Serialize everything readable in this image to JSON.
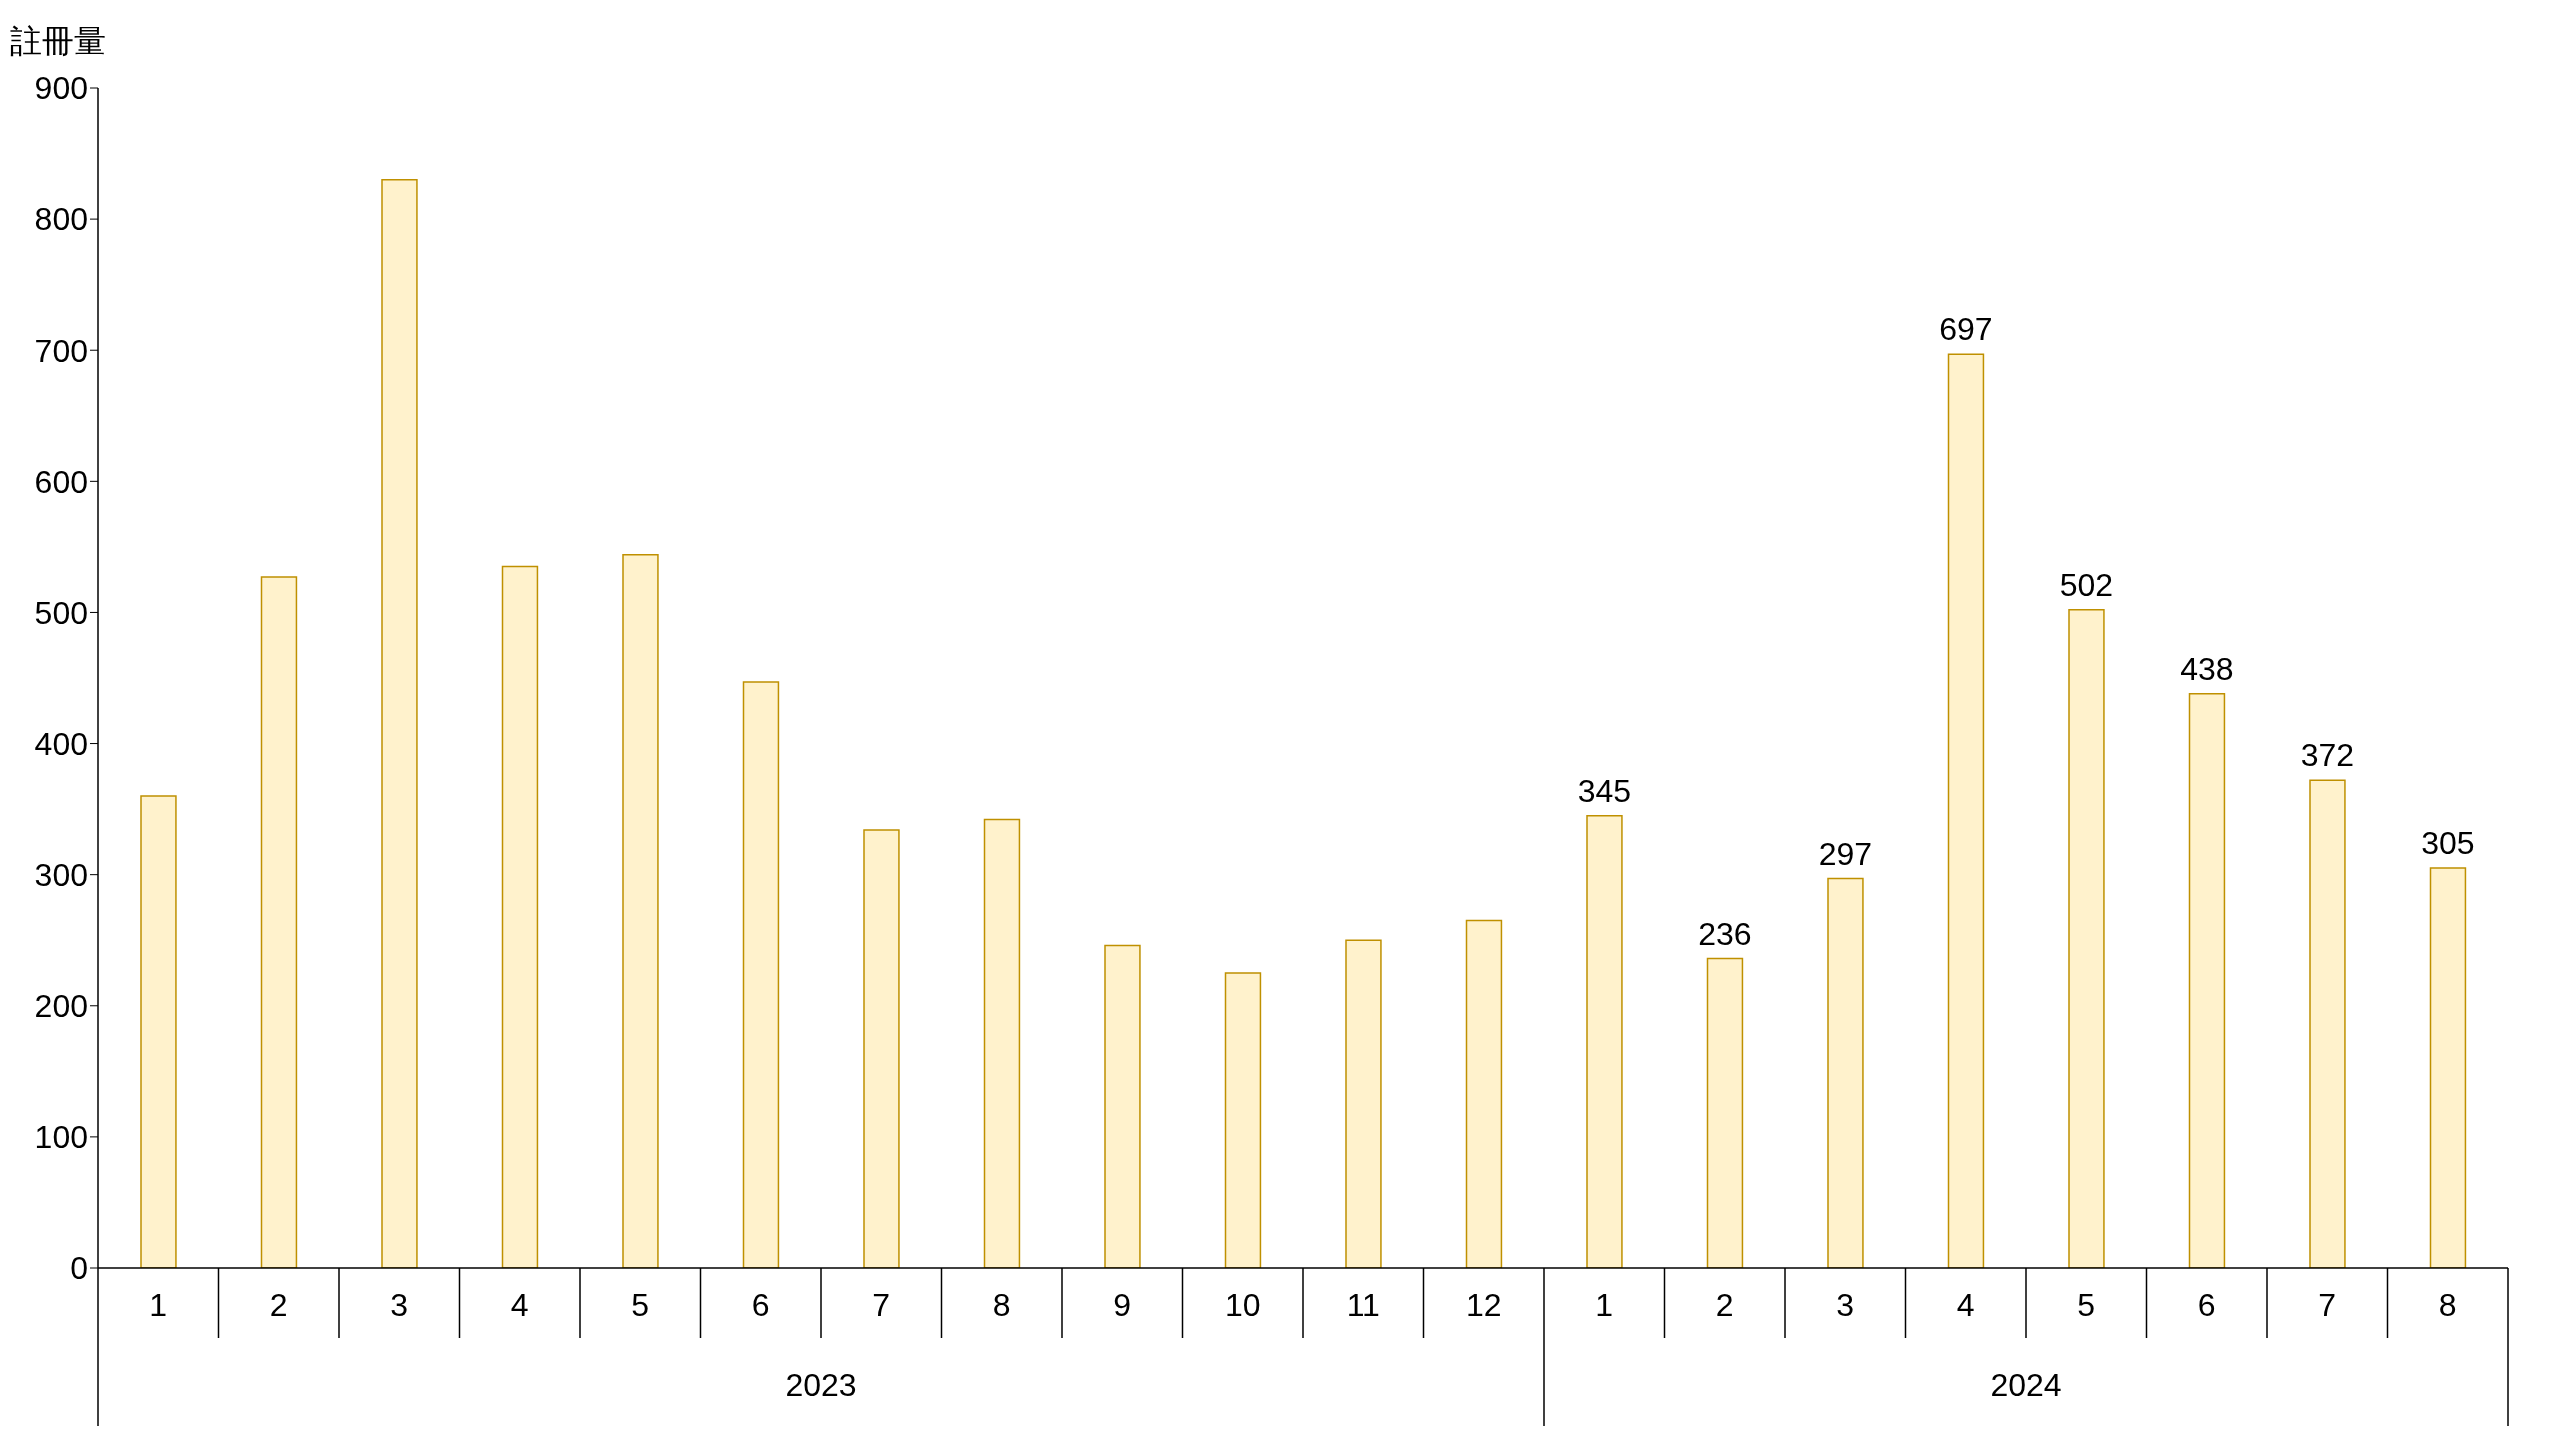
{
  "chart_data": {
    "type": "bar",
    "ylabel": "註冊量",
    "categories": [
      "1",
      "2",
      "3",
      "4",
      "5",
      "6",
      "7",
      "8",
      "9",
      "10",
      "11",
      "12",
      "1",
      "2",
      "3",
      "4",
      "5",
      "6",
      "7",
      "8"
    ],
    "values": [
      360,
      527,
      830,
      535,
      544,
      447,
      334,
      342,
      246,
      225,
      250,
      265,
      345,
      236,
      297,
      697,
      502,
      438,
      372,
      305
    ],
    "value_labels": [
      null,
      null,
      null,
      null,
      null,
      null,
      null,
      null,
      null,
      null,
      null,
      null,
      "345",
      "236",
      "297",
      "697",
      "502",
      "438",
      "372",
      "305"
    ],
    "color": "#fff2cc",
    "annotations": [
      "2023",
      "2024"
    ],
    "ylim": [
      0,
      900
    ],
    "yticks": [
      0,
      100,
      200,
      300,
      400,
      500,
      600,
      700,
      800,
      900
    ],
    "grid": false,
    "legend": false
  }
}
